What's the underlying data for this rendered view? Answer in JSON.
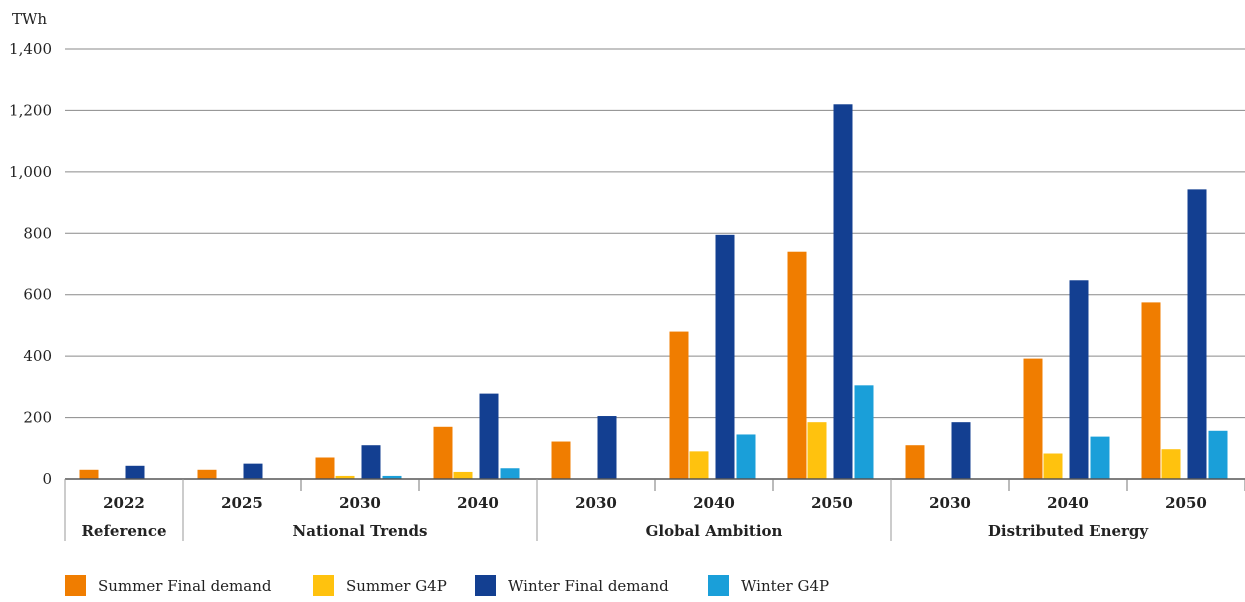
{
  "chart_data": {
    "type": "bar",
    "unit_label": "TWh",
    "ylim": [
      0,
      1400
    ],
    "yticks": [
      0,
      200,
      400,
      600,
      800,
      1000,
      1200,
      1400
    ],
    "ytick_labels": [
      "0",
      "200",
      "400",
      "600",
      "800",
      "1,000",
      "1,200",
      "1,400"
    ],
    "grid": true,
    "legend_position": "bottom-left",
    "groups": [
      {
        "label": "Reference",
        "categories": [
          "2022"
        ]
      },
      {
        "label": "National Trends",
        "categories": [
          "2025",
          "2030",
          "2040"
        ]
      },
      {
        "label": "Global Ambition",
        "categories": [
          "2030",
          "2040",
          "2050"
        ]
      },
      {
        "label": "Distributed Energy",
        "categories": [
          "2030",
          "2040",
          "2050"
        ]
      }
    ],
    "series": [
      {
        "name": "Summer Final demand",
        "color": "#f07d00",
        "values": [
          30,
          30,
          70,
          170,
          122,
          480,
          740,
          110,
          392,
          575
        ]
      },
      {
        "name": "Summer G4P",
        "color": "#ffc20e",
        "values": [
          0,
          0,
          10,
          23,
          0,
          90,
          185,
          0,
          83,
          97
        ]
      },
      {
        "name": "Winter Final demand",
        "color": "#133f91",
        "values": [
          43,
          50,
          110,
          278,
          205,
          795,
          1220,
          185,
          647,
          943
        ]
      },
      {
        "name": "Winter G4P",
        "color": "#1a9fd9",
        "values": [
          0,
          0,
          10,
          35,
          0,
          145,
          305,
          0,
          138,
          157
        ]
      }
    ]
  }
}
